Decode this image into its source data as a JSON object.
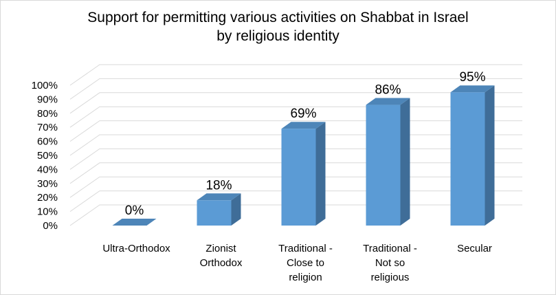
{
  "chart_data": {
    "type": "bar",
    "title_lines": [
      "Support for permitting various activities on Shabbat in Israel",
      "by religious identity"
    ],
    "categories": [
      [
        "Ultra-Orthodox"
      ],
      [
        "Zionist",
        "Orthodox"
      ],
      [
        "Traditional -",
        "Close to",
        "religion"
      ],
      [
        "Traditional -",
        "Not so",
        "religious"
      ],
      [
        "Secular"
      ]
    ],
    "values": [
      0,
      18,
      69,
      86,
      95
    ],
    "data_labels": [
      "0%",
      "18%",
      "69%",
      "86%",
      "95%"
    ],
    "ylim": [
      0,
      100
    ],
    "yticks": [
      0,
      10,
      20,
      30,
      40,
      50,
      60,
      70,
      80,
      90,
      100
    ],
    "ytick_labels": [
      "0%",
      "10%",
      "20%",
      "30%",
      "40%",
      "50%",
      "60%",
      "70%",
      "80%",
      "90%",
      "100%"
    ],
    "grid": true,
    "legend": "none",
    "colors": {
      "bar_front": "#5b9bd5",
      "bar_side": "#3f6d98",
      "bar_top": "#4d85b8",
      "grid": "#d9d9d9"
    }
  }
}
